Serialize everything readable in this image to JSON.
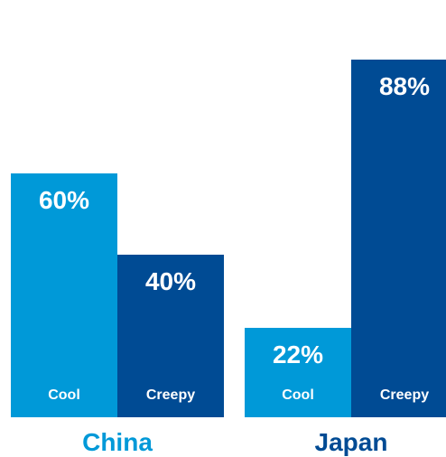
{
  "chart_data": {
    "type": "bar",
    "title": "",
    "xlabel": "",
    "ylabel": "",
    "ylim": [
      0,
      100
    ],
    "groups": [
      {
        "name": "China",
        "bars": [
          {
            "label": "Cool",
            "value": 60,
            "value_label": "60%"
          },
          {
            "label": "Creepy",
            "value": 40,
            "value_label": "40%"
          }
        ]
      },
      {
        "name": "Japan",
        "bars": [
          {
            "label": "Cool",
            "value": 22,
            "value_label": "22%"
          },
          {
            "label": "Creepy",
            "value": 88,
            "value_label": "88%"
          }
        ]
      }
    ],
    "colors": {
      "Cool": "#0099d8",
      "Creepy": "#004b94",
      "group_label_china": "#0099d8",
      "group_label_japan": "#004b94"
    }
  }
}
